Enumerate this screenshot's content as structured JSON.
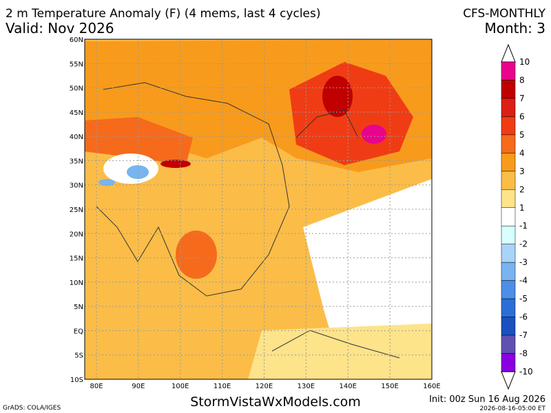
{
  "header": {
    "title": "2 m Temperature Anomaly (F) (4 mems, last 4 cycles)",
    "valid": "Valid: Nov 2026",
    "model": "CFS-MONTHLY",
    "month": "Month: 3"
  },
  "map": {
    "lat_labels": [
      "60N",
      "55N",
      "50N",
      "45N",
      "40N",
      "35N",
      "30N",
      "25N",
      "20N",
      "15N",
      "10N",
      "5N",
      "EQ",
      "5S",
      "10S"
    ],
    "lon_labels": [
      "80E",
      "90E",
      "100E",
      "110E",
      "120E",
      "130E",
      "140E",
      "150E",
      "160E"
    ]
  },
  "legend": {
    "labels": [
      "10",
      "8",
      "7",
      "6",
      "5",
      "4",
      "3",
      "2",
      "1",
      "-1",
      "-2",
      "-3",
      "-4",
      "-5",
      "-6",
      "-7",
      "-8",
      "-10"
    ],
    "colors": [
      "#e8048c",
      "#c00000",
      "#dc1e14",
      "#f03c14",
      "#f66a1c",
      "#f89b1c",
      "#fbbd48",
      "#fde38a",
      "#ffffff",
      "#d8ffff",
      "#a8d4f8",
      "#78b4f0",
      "#4c8ee8",
      "#2c6ed8",
      "#1a50c0",
      "#6050b0",
      "#8a00e0"
    ]
  },
  "footer": {
    "credit": "GrADS: COLA/IGES",
    "site": "StormVistaWxModels.com",
    "init": "Init: 00z Sun 16 Aug 2026",
    "timestamp": "2026-08-16-05:00 ET"
  }
}
